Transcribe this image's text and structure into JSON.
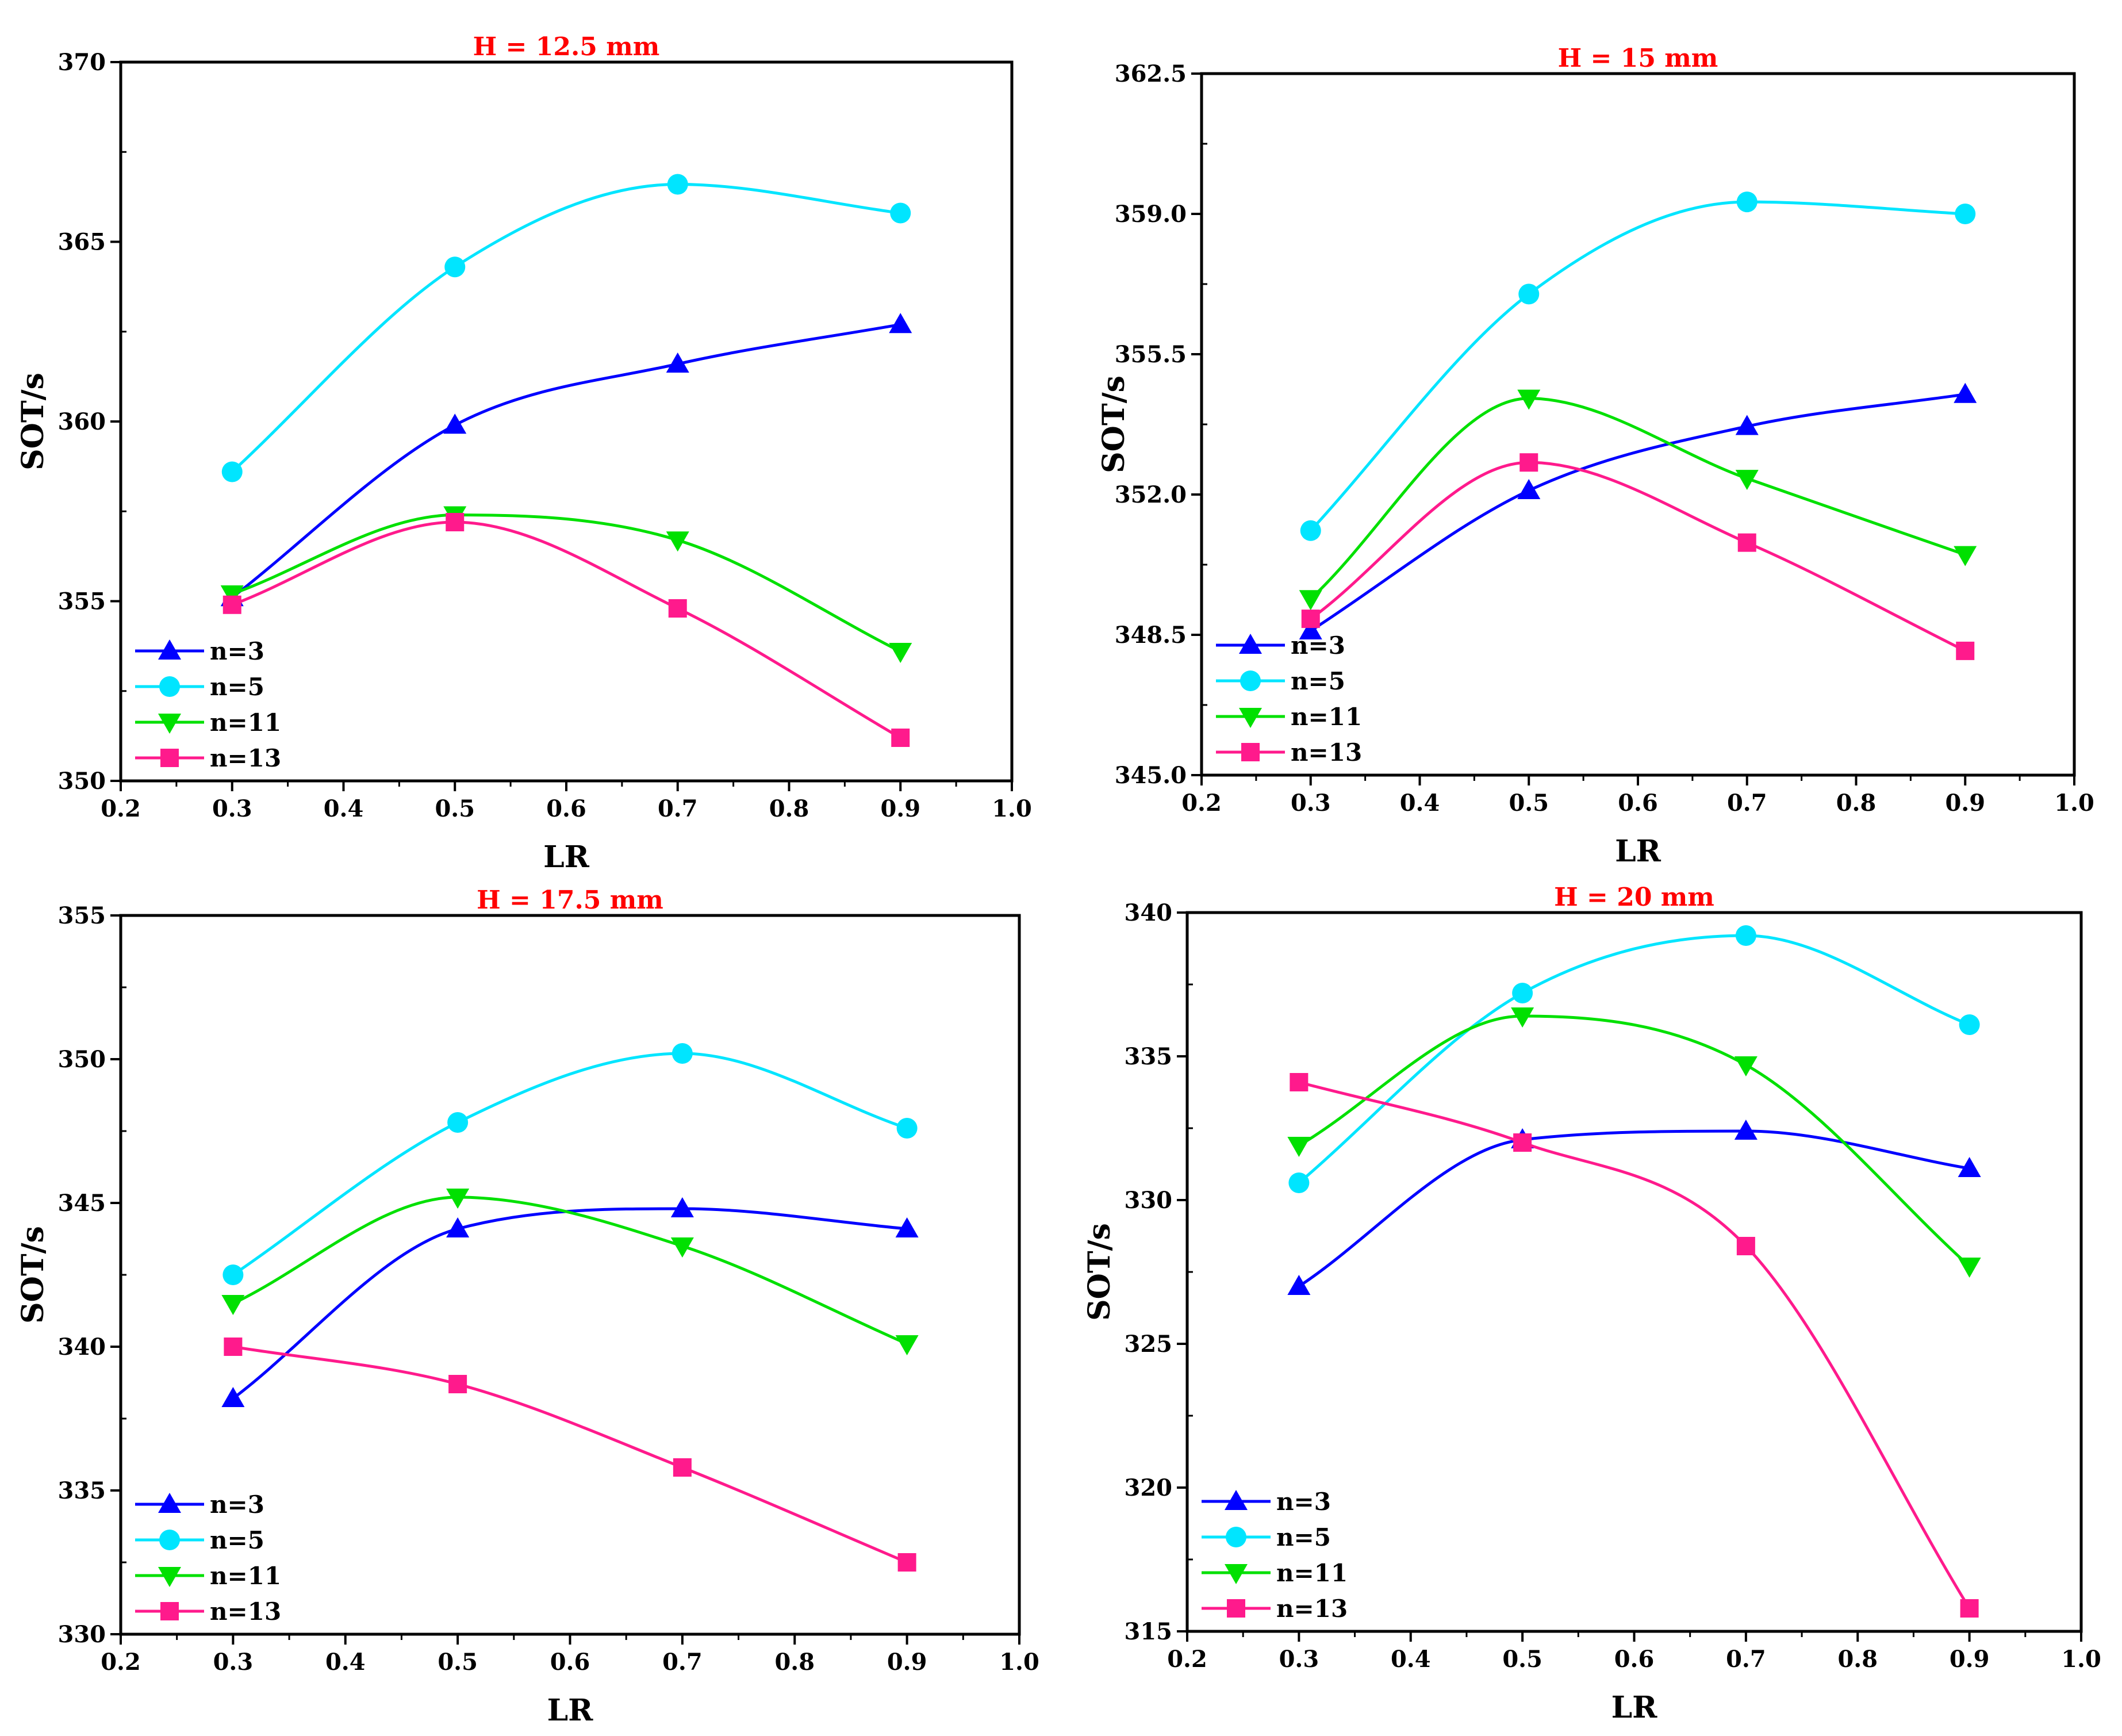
{
  "chart_data": [
    {
      "type": "line",
      "title": "H = 12.5 mm",
      "xlabel": "LR",
      "ylabel": "SOT/s",
      "xlim": [
        0.2,
        1.0
      ],
      "ylim": [
        350,
        370
      ],
      "xticks": [
        0.2,
        0.3,
        0.4,
        0.5,
        0.6,
        0.7,
        0.8,
        0.9,
        1.0
      ],
      "xtick_labels": [
        "0.2",
        "0.3",
        "0.4",
        "0.5",
        "0.6",
        "0.7",
        "0.8",
        "0.9",
        "1.0"
      ],
      "yticks": [
        350,
        355,
        360,
        365,
        370
      ],
      "ytick_labels": [
        "350",
        "355",
        "360",
        "365",
        "370"
      ],
      "x": [
        0.3,
        0.5,
        0.7,
        0.9
      ],
      "legend_position": "bottom-left",
      "series": [
        {
          "name": "n=3",
          "values": [
            355.1,
            359.9,
            361.6,
            362.7
          ]
        },
        {
          "name": "n=5",
          "values": [
            358.6,
            364.3,
            366.6,
            365.8
          ]
        },
        {
          "name": "n=11",
          "values": [
            355.2,
            357.4,
            356.7,
            353.6
          ]
        },
        {
          "name": "n=13",
          "values": [
            354.9,
            357.2,
            354.8,
            351.2
          ]
        }
      ]
    },
    {
      "type": "line",
      "title": "H = 15 mm",
      "xlabel": "LR",
      "ylabel": "SOT/s",
      "xlim": [
        0.2,
        1.0
      ],
      "ylim": [
        345.0,
        362.5
      ],
      "xticks": [
        0.2,
        0.3,
        0.4,
        0.5,
        0.6,
        0.7,
        0.8,
        0.9,
        1.0
      ],
      "xtick_labels": [
        "0.2",
        "0.3",
        "0.4",
        "0.5",
        "0.6",
        "0.7",
        "0.8",
        "0.9",
        "1.0"
      ],
      "yticks": [
        345.0,
        348.5,
        352.0,
        355.5,
        359.0,
        362.5
      ],
      "ytick_labels": [
        "345.0",
        "348.5",
        "352.0",
        "355.5",
        "359.0",
        "362.5"
      ],
      "x": [
        0.3,
        0.5,
        0.7,
        0.9
      ],
      "legend_position": "bottom-left",
      "series": [
        {
          "name": "n=3",
          "values": [
            348.6,
            352.1,
            353.7,
            354.5
          ]
        },
        {
          "name": "n=5",
          "values": [
            351.1,
            357.0,
            359.3,
            359.0
          ]
        },
        {
          "name": "n=11",
          "values": [
            349.4,
            354.4,
            352.4,
            350.5
          ]
        },
        {
          "name": "n=13",
          "values": [
            348.9,
            352.8,
            350.8,
            348.1
          ]
        }
      ]
    },
    {
      "type": "line",
      "title": "H = 17.5 mm",
      "xlabel": "LR",
      "ylabel": "SOT/s",
      "xlim": [
        0.2,
        1.0
      ],
      "ylim": [
        330,
        355
      ],
      "xticks": [
        0.2,
        0.3,
        0.4,
        0.5,
        0.6,
        0.7,
        0.8,
        0.9,
        1.0
      ],
      "xtick_labels": [
        "0.2",
        "0.3",
        "0.4",
        "0.5",
        "0.6",
        "0.7",
        "0.8",
        "0.9",
        "1.0"
      ],
      "yticks": [
        330,
        335,
        340,
        345,
        350,
        355
      ],
      "ytick_labels": [
        "330",
        "335",
        "340",
        "345",
        "350",
        "355"
      ],
      "x": [
        0.3,
        0.5,
        0.7,
        0.9
      ],
      "legend_position": "bottom-left",
      "series": [
        {
          "name": "n=3",
          "values": [
            338.2,
            344.1,
            344.8,
            344.1
          ]
        },
        {
          "name": "n=5",
          "values": [
            342.5,
            347.8,
            350.2,
            347.6
          ]
        },
        {
          "name": "n=11",
          "values": [
            341.5,
            345.2,
            343.5,
            340.1
          ]
        },
        {
          "name": "n=13",
          "values": [
            340.0,
            338.7,
            335.8,
            332.5
          ]
        }
      ]
    },
    {
      "type": "line",
      "title": "H = 20 mm",
      "xlabel": "LR",
      "ylabel": "SOT/s",
      "xlim": [
        0.2,
        1.0
      ],
      "ylim": [
        315,
        340
      ],
      "xticks": [
        0.2,
        0.3,
        0.4,
        0.5,
        0.6,
        0.7,
        0.8,
        0.9,
        1.0
      ],
      "xtick_labels": [
        "0.2",
        "0.3",
        "0.4",
        "0.5",
        "0.6",
        "0.7",
        "0.8",
        "0.9",
        "1.0"
      ],
      "yticks": [
        315,
        320,
        325,
        330,
        335,
        340
      ],
      "ytick_labels": [
        "315",
        "320",
        "325",
        "330",
        "335",
        "340"
      ],
      "x": [
        0.3,
        0.5,
        0.7,
        0.9
      ],
      "legend_position": "bottom-left",
      "series": [
        {
          "name": "n=3",
          "values": [
            327.0,
            332.1,
            332.4,
            331.1
          ]
        },
        {
          "name": "n=5",
          "values": [
            330.6,
            337.2,
            339.2,
            336.1
          ]
        },
        {
          "name": "n=11",
          "values": [
            331.9,
            336.4,
            334.7,
            327.7
          ]
        },
        {
          "name": "n=13",
          "values": [
            334.1,
            332.0,
            328.4,
            315.8
          ]
        }
      ]
    }
  ],
  "series_styles": [
    {
      "color": "#0000ff",
      "marker": "triangle-up"
    },
    {
      "color": "#00e5ff",
      "marker": "circle"
    },
    {
      "color": "#00e000",
      "marker": "triangle-down"
    },
    {
      "color": "#ff1a8c",
      "marker": "square"
    }
  ]
}
